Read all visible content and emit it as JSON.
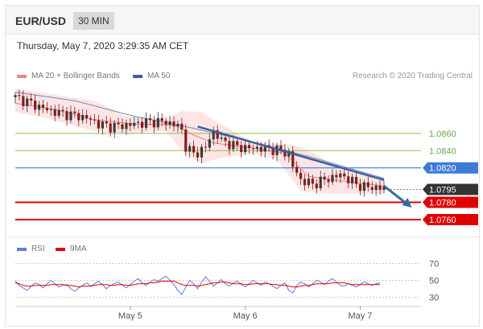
{
  "header": {
    "symbol": "EUR/USD",
    "timeframe": "30 MIN"
  },
  "chart_date": "Thursday, May 7, 2020 3:29:35 AM CET",
  "legend": {
    "ma20": {
      "label": "MA 20 + Bollinger Bands",
      "color": "#f08080"
    },
    "ma50": {
      "label": "MA 50",
      "color": "#3a5fa0"
    }
  },
  "credit": "Research © 2020 Trading Central",
  "rsi_legend": {
    "rsi": {
      "label": "RSI",
      "color": "#5b7fd6"
    },
    "ma9": {
      "label": "9MA",
      "color": "#e00000"
    }
  },
  "colors": {
    "up": "#3a3a3a",
    "down": "#8b1a1a",
    "band": "#fde0e0",
    "target": "#e00000",
    "pivot": "#3d7bd6",
    "resist": "#8bc34a",
    "trend": "#3a5fa0"
  },
  "chart_data": [
    {
      "type": "line",
      "name": "price",
      "ylim": [
        1.0745,
        1.0915
      ],
      "x_ticks": [
        {
          "label": "May 5",
          "index": 29
        },
        {
          "label": "May 6",
          "index": 58
        },
        {
          "label": "May 7",
          "index": 87
        }
      ],
      "price_path": [
        [
          0,
          1.0902
        ],
        [
          3,
          1.0897
        ],
        [
          6,
          1.0891
        ],
        [
          9,
          1.0886
        ],
        [
          12,
          1.0883
        ],
        [
          15,
          1.0881
        ],
        [
          18,
          1.0878
        ],
        [
          21,
          1.0871
        ],
        [
          24,
          1.0868
        ],
        [
          27,
          1.0869
        ],
        [
          30,
          1.0871
        ],
        [
          33,
          1.0873
        ],
        [
          36,
          1.0874
        ],
        [
          39,
          1.0872
        ],
        [
          41,
          1.0869
        ],
        [
          42,
          1.0863
        ],
        [
          43,
          1.0845
        ],
        [
          45,
          1.0836
        ],
        [
          48,
          1.0843
        ],
        [
          49,
          1.0855
        ],
        [
          50,
          1.0862
        ],
        [
          52,
          1.0852
        ],
        [
          55,
          1.0846
        ],
        [
          58,
          1.0843
        ],
        [
          61,
          1.0843
        ],
        [
          64,
          1.0842
        ],
        [
          67,
          1.084
        ],
        [
          69,
          1.0836
        ],
        [
          70,
          1.0822
        ],
        [
          72,
          1.0806
        ],
        [
          75,
          1.0801
        ],
        [
          78,
          1.0806
        ],
        [
          80,
          1.0809
        ],
        [
          82,
          1.0812
        ],
        [
          84,
          1.0807
        ],
        [
          86,
          1.0801
        ],
        [
          88,
          1.0798
        ],
        [
          91,
          1.0797
        ],
        [
          93,
          1.0796
        ]
      ],
      "levels": [
        {
          "value": 1.086,
          "label": "1.0860",
          "kind": "resistance"
        },
        {
          "value": 1.084,
          "label": "1.0840",
          "kind": "resistance"
        },
        {
          "value": 1.082,
          "label": "1.0820",
          "kind": "pivot"
        },
        {
          "value": 1.0795,
          "label": "1.0795",
          "kind": "current"
        },
        {
          "value": 1.078,
          "label": "1.0780",
          "kind": "target"
        },
        {
          "value": 1.076,
          "label": "1.0760",
          "kind": "target"
        }
      ],
      "ma50": [
        [
          0,
          1.0908
        ],
        [
          15,
          1.0898
        ],
        [
          30,
          1.088
        ],
        [
          45,
          1.0866
        ],
        [
          60,
          1.085
        ],
        [
          75,
          1.0832
        ],
        [
          90,
          1.0812
        ],
        [
          93,
          1.0808
        ]
      ],
      "ma20": [
        [
          0,
          1.0895
        ],
        [
          10,
          1.0888
        ],
        [
          20,
          1.0876
        ],
        [
          30,
          1.0871
        ],
        [
          40,
          1.087
        ],
        [
          45,
          1.0858
        ],
        [
          50,
          1.0849
        ],
        [
          60,
          1.0843
        ],
        [
          68,
          1.0837
        ],
        [
          74,
          1.081
        ],
        [
          82,
          1.0805
        ],
        [
          93,
          1.0799
        ]
      ],
      "bb_upper": [
        [
          0,
          1.0912
        ],
        [
          10,
          1.0905
        ],
        [
          20,
          1.0898
        ],
        [
          28,
          1.088
        ],
        [
          38,
          1.0876
        ],
        [
          42,
          1.0886
        ],
        [
          47,
          1.0885
        ],
        [
          52,
          1.087
        ],
        [
          60,
          1.085
        ],
        [
          66,
          1.0848
        ],
        [
          72,
          1.0845
        ],
        [
          80,
          1.0825
        ],
        [
          93,
          1.0808
        ]
      ],
      "bb_lower": [
        [
          0,
          1.0885
        ],
        [
          10,
          1.0875
        ],
        [
          20,
          1.0862
        ],
        [
          28,
          1.086
        ],
        [
          38,
          1.0863
        ],
        [
          42,
          1.084
        ],
        [
          47,
          1.0825
        ],
        [
          52,
          1.0832
        ],
        [
          60,
          1.0836
        ],
        [
          66,
          1.083
        ],
        [
          72,
          1.0793
        ],
        [
          80,
          1.079
        ],
        [
          93,
          1.079
        ]
      ],
      "trendline": [
        [
          46,
          1.0868
        ],
        [
          93,
          1.0806
        ]
      ],
      "arrow": [
        [
          93,
          1.0799
        ],
        [
          100,
          1.0774
        ]
      ]
    },
    {
      "type": "line",
      "name": "rsi",
      "ylim": [
        15,
        85
      ],
      "y_ticks": [
        70,
        50,
        30
      ],
      "rsi": [
        49,
        44,
        41,
        38,
        43,
        47,
        45,
        41,
        46,
        50,
        46,
        42,
        44,
        45,
        40,
        37,
        41,
        44,
        47,
        43,
        46,
        49,
        45,
        40,
        44,
        46,
        48,
        44,
        41,
        45,
        49,
        52,
        47,
        44,
        48,
        51,
        49,
        52,
        55,
        50,
        45,
        38,
        33,
        42,
        50,
        46,
        40,
        48,
        54,
        49,
        43,
        47,
        51,
        46,
        43,
        47,
        49,
        45,
        42,
        46,
        50,
        47,
        44,
        48,
        46,
        43,
        40,
        44,
        47,
        38,
        35,
        44,
        48,
        46,
        42,
        46,
        50,
        48,
        45,
        49,
        52,
        48,
        44,
        43,
        46,
        44,
        42,
        45,
        48,
        46,
        44,
        46,
        47
      ],
      "ma9": [
        47,
        46,
        44,
        43,
        43,
        44,
        44,
        44,
        44,
        45,
        45,
        45,
        45,
        44,
        44,
        43,
        42,
        43,
        43,
        43,
        44,
        45,
        45,
        45,
        44,
        44,
        45,
        45,
        44,
        44,
        45,
        46,
        46,
        46,
        47,
        47,
        48,
        49,
        49,
        49,
        49,
        47,
        45,
        44,
        44,
        44,
        43,
        44,
        45,
        46,
        47,
        47,
        48,
        48,
        47,
        46,
        46,
        46,
        45,
        45,
        46,
        46,
        46,
        46,
        46,
        45,
        45,
        44,
        44,
        43,
        42,
        42,
        43,
        44,
        44,
        45,
        46,
        46,
        46,
        46,
        47,
        47,
        47,
        47,
        46,
        45,
        45,
        45,
        45,
        45,
        45,
        45,
        45
      ]
    }
  ]
}
